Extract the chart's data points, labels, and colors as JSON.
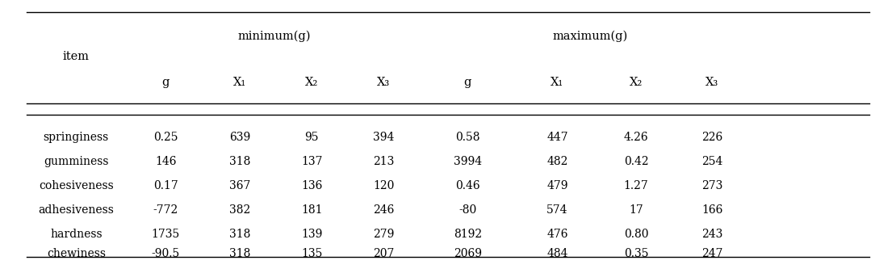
{
  "col_headers_row2": [
    "item",
    "g",
    "X₁",
    "X₂",
    "X₃",
    "g",
    "X₁",
    "X₂",
    "X₃"
  ],
  "rows": [
    [
      "springiness",
      "0.25",
      "639",
      "95",
      "394",
      "0.58",
      "447",
      "4.26",
      "226"
    ],
    [
      "gumminess",
      "146",
      "318",
      "137",
      "213",
      "3994",
      "482",
      "0.42",
      "254"
    ],
    [
      "cohesiveness",
      "0.17",
      "367",
      "136",
      "120",
      "0.46",
      "479",
      "1.27",
      "273"
    ],
    [
      "adhesiveness",
      "-772",
      "382",
      "181",
      "246",
      "-80",
      "574",
      "17",
      "166"
    ],
    [
      "hardness",
      "1735",
      "318",
      "139",
      "279",
      "8192",
      "476",
      "0.80",
      "243"
    ],
    [
      "chewiness",
      "-90.5",
      "318",
      "135",
      "207",
      "2069",
      "484",
      "0.35",
      "247"
    ]
  ],
  "background_color": "#ffffff",
  "text_color": "#000000",
  "font_size": 10.0,
  "header_font_size": 10.5
}
